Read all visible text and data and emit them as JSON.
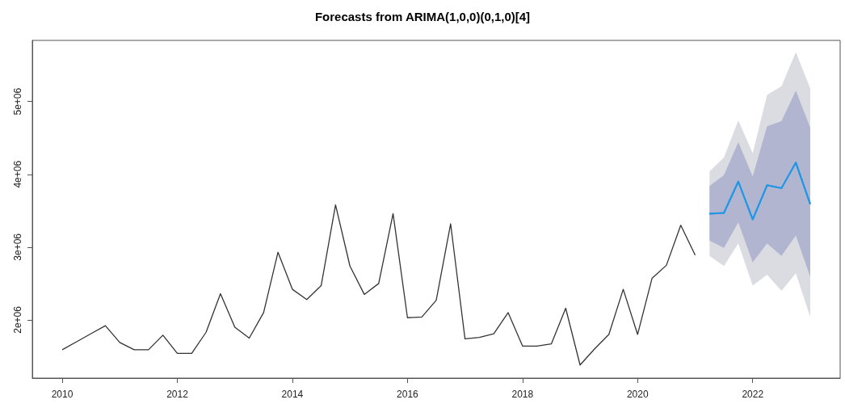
{
  "chart_data": {
    "type": "line",
    "title": "Forecasts from ARIMA(1,0,0)(0,1,0)[4]",
    "xlim": [
      2009.48,
      2023.52
    ],
    "xticks": [
      2010,
      2012,
      2014,
      2016,
      2018,
      2020,
      2022
    ],
    "ylim": [
      1200000,
      5840000
    ],
    "yticks": [
      {
        "value": 2000000,
        "label": "2e+06"
      },
      {
        "value": 3000000,
        "label": "3e+06"
      },
      {
        "value": 4000000,
        "label": "4e+06"
      },
      {
        "value": 5000000,
        "label": "5e+06"
      }
    ],
    "grid": false,
    "marker": "none",
    "line_style": "solid",
    "series": [
      {
        "color": "#333333",
        "x": [
          2010,
          2010.25,
          2010.5,
          2010.75,
          2011,
          2011.25,
          2011.5,
          2011.75,
          2012,
          2012.25,
          2012.5,
          2012.75,
          2013,
          2013.25,
          2013.5,
          2013.75,
          2014,
          2014.25,
          2014.5,
          2014.75,
          2015,
          2015.25,
          2015.5,
          2015.75,
          2016,
          2016.25,
          2016.5,
          2016.75,
          2017,
          2017.25,
          2017.5,
          2017.75,
          2018,
          2018.25,
          2018.5,
          2018.75,
          2019,
          2019.25,
          2019.5,
          2019.75,
          2020,
          2020.25,
          2020.5,
          2020.75,
          2021
        ],
        "values": [
          1590000,
          1700000,
          1810000,
          1920000,
          1690000,
          1590000,
          1590000,
          1790000,
          1540000,
          1540000,
          1830000,
          2360000,
          1900000,
          1750000,
          2100000,
          2930000,
          2420000,
          2280000,
          2470000,
          3580000,
          2740000,
          2350000,
          2500000,
          3460000,
          2030000,
          2040000,
          2270000,
          3320000,
          1740000,
          1760000,
          1810000,
          2100000,
          1640000,
          1640000,
          1670000,
          2160000,
          1380000,
          1600000,
          1800000,
          2420000,
          1800000,
          2570000,
          2750000,
          3300000,
          2890000
        ]
      },
      {
        "color": "#2297e6",
        "x": [
          2021.25,
          2021.5,
          2021.75,
          2022,
          2022.25,
          2022.5,
          2022.75,
          2023
        ],
        "values": [
          3460000,
          3470000,
          3900000,
          3380000,
          3850000,
          3810000,
          4160000,
          3590000
        ],
        "lower": [
          2880000,
          2740000,
          3050000,
          2470000,
          2620000,
          2400000,
          2640000,
          2040000
        ],
        "upper": [
          4040000,
          4230000,
          4740000,
          4290000,
          5090000,
          5210000,
          5680000,
          5180000
        ]
      },
      {
        "color": "#2297e6",
        "x": [
          2021.25,
          2021.5,
          2021.75,
          2022,
          2022.25,
          2022.5,
          2022.75,
          2023
        ],
        "values": [
          3460000,
          3470000,
          3900000,
          3380000,
          3850000,
          3810000,
          4160000,
          3590000
        ],
        "lower": [
          3090000,
          2990000,
          3340000,
          2790000,
          3050000,
          2880000,
          3160000,
          2590000
        ],
        "upper": [
          3840000,
          3990000,
          4440000,
          3970000,
          4660000,
          4730000,
          5150000,
          4640000
        ]
      }
    ]
  }
}
